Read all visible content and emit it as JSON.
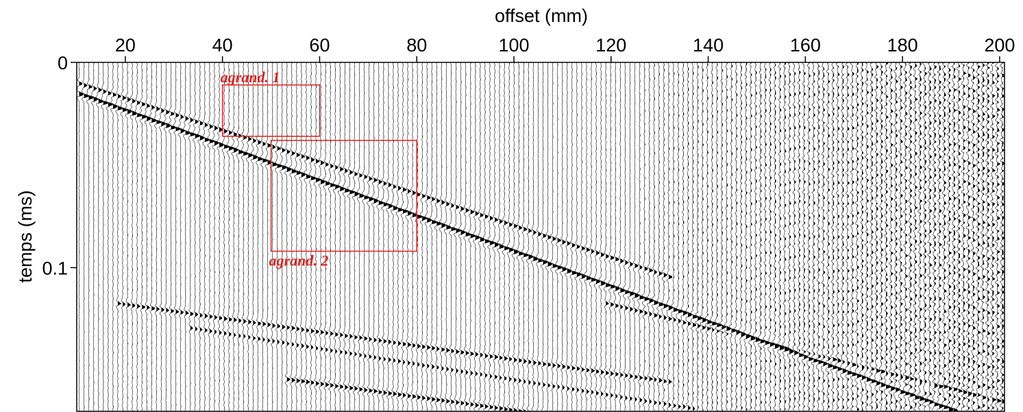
{
  "chart_data": {
    "type": "seismic-wiggle",
    "xlabel": "offset (mm)",
    "ylabel": "temps (ms)",
    "xlim": [
      10,
      201
    ],
    "ylim": [
      0,
      0.17
    ],
    "x_ticks": [
      20,
      40,
      60,
      80,
      100,
      120,
      140,
      160,
      180,
      200
    ],
    "x_tick_labels": [
      "20",
      "40",
      "60",
      "80",
      "100",
      "120",
      "140",
      "160",
      "180",
      "200"
    ],
    "y_ticks": [
      0,
      0.1
    ],
    "y_tick_labels": [
      "0",
      "0.1"
    ],
    "trace_count": 192,
    "events": [
      {
        "x": [
          10,
          200
        ],
        "t": [
          0.015,
          0.178
        ],
        "strength": 1.0
      },
      {
        "x": [
          10,
          130
        ],
        "t": [
          0.01,
          0.103
        ],
        "strength": 0.5
      },
      {
        "x": [
          20,
          130
        ],
        "t": [
          0.118,
          0.155
        ],
        "strength": 0.45
      },
      {
        "x": [
          35,
          135
        ],
        "t": [
          0.13,
          0.168
        ],
        "strength": 0.35
      },
      {
        "x": [
          55,
          200
        ],
        "t": [
          0.155,
          0.202
        ],
        "strength": 0.5
      },
      {
        "x": [
          120,
          200
        ],
        "t": [
          0.118,
          0.165
        ],
        "strength": 0.45
      }
    ],
    "annotations": [
      {
        "label": "agrand. 1",
        "x": [
          40,
          60
        ],
        "t": [
          0.011,
          0.036
        ],
        "label_position": "above",
        "color": "#e02020"
      },
      {
        "label": "agrand. 2",
        "x": [
          50,
          80
        ],
        "t": [
          0.038,
          0.092
        ],
        "label_position": "below",
        "color": "#e02020"
      }
    ]
  }
}
